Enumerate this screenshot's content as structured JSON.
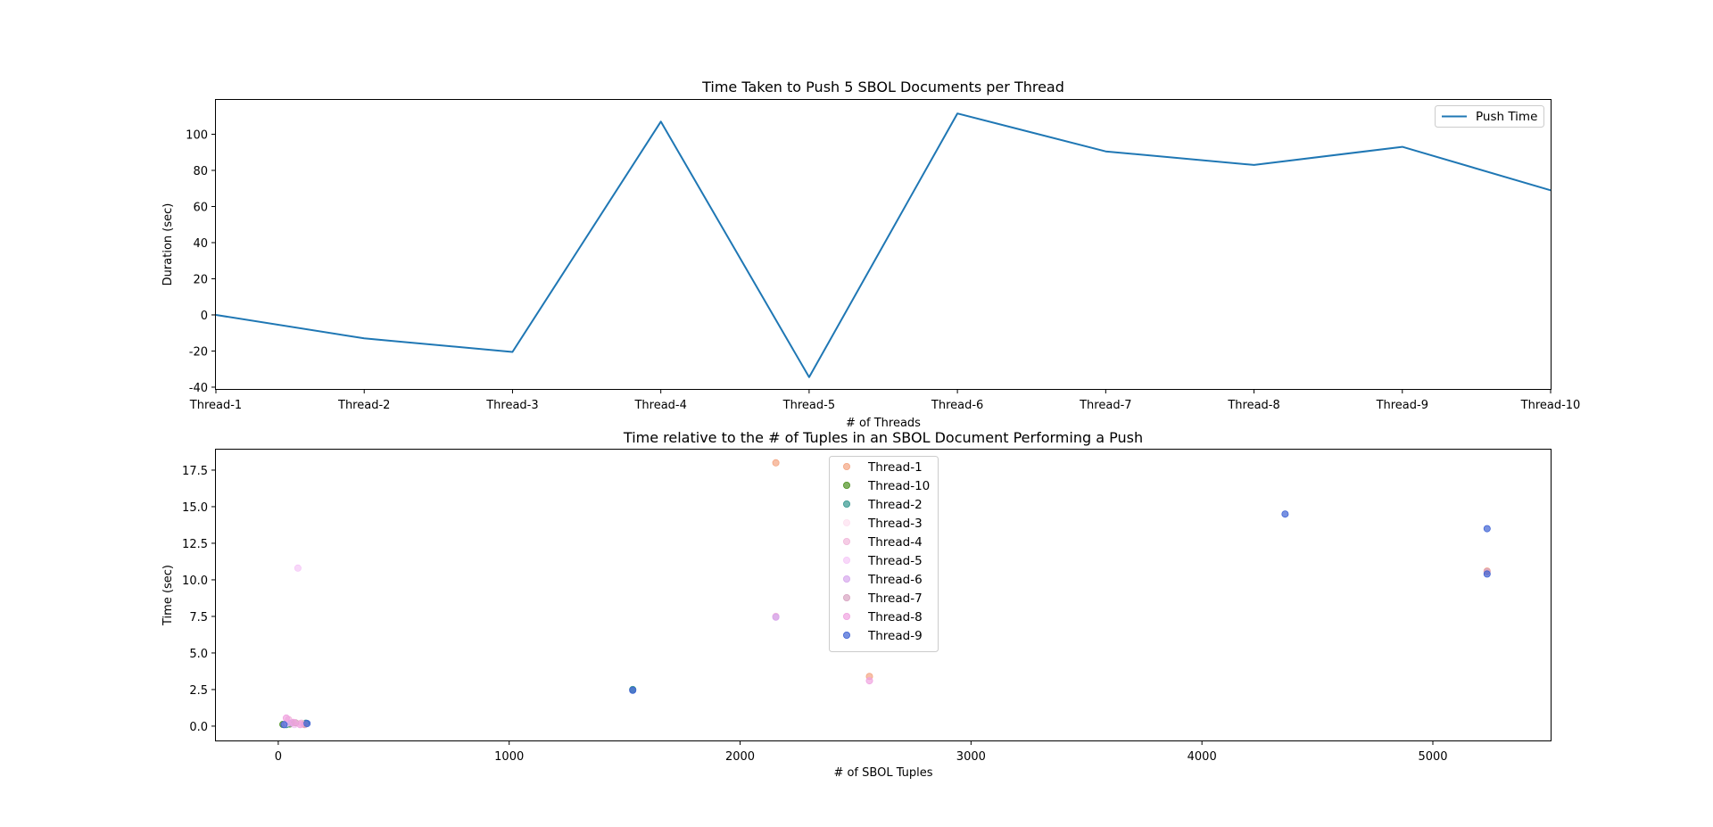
{
  "colors": {
    "line": "#1f77b4",
    "Thread-1": "#f4a582",
    "Thread-10": "#4d9221",
    "Thread-2": "#35978f",
    "Thread-3": "#fde0ef",
    "Thread-4": "#f1b6da",
    "Thread-5": "#f5c8f7",
    "Thread-6": "#d6a6ec",
    "Thread-7": "#d7a3c0",
    "Thread-8": "#f0a2e0",
    "Thread-9": "#3f63d4"
  },
  "chart_data": [
    {
      "type": "line",
      "title": "Time Taken to Push 5 SBOL Documents per Thread",
      "xlabel": "# of Threads",
      "ylabel": "Duration (sec)",
      "categories": [
        "Thread-1",
        "Thread-2",
        "Thread-3",
        "Thread-4",
        "Thread-5",
        "Thread-6",
        "Thread-7",
        "Thread-8",
        "Thread-9",
        "Thread-10"
      ],
      "series": [
        {
          "name": "Push Time",
          "values": [
            0,
            -13,
            -20.5,
            107,
            -34.5,
            111.5,
            90.5,
            83,
            93,
            69
          ]
        }
      ],
      "ylim": [
        -41,
        119
      ],
      "yticks": [
        -40,
        -20,
        0,
        20,
        40,
        60,
        80,
        100
      ],
      "legend": "top-right",
      "grid": false
    },
    {
      "type": "scatter",
      "title": "Time relative to the # of Tuples in an SBOL Document Performing a Push",
      "xlabel": "# of SBOL Tuples",
      "ylabel": "Time (sec)",
      "xlim": [
        -270,
        5510
      ],
      "ylim": [
        -0.98,
        18.9
      ],
      "xticks": [
        0,
        1000,
        2000,
        3000,
        4000,
        5000
      ],
      "yticks": [
        0.0,
        2.5,
        5.0,
        7.5,
        10.0,
        12.5,
        15.0,
        17.5
      ],
      "ytick_labels": [
        "0.0",
        "2.5",
        "5.0",
        "7.5",
        "10.0",
        "12.5",
        "15.0",
        "17.5"
      ],
      "legend": "upper center",
      "grid": false,
      "series": [
        {
          "name": "Thread-1",
          "points": [
            [
              2155,
              18.0
            ],
            [
              5235,
              10.6
            ],
            [
              2560,
              3.4
            ],
            [
              25,
              0.1
            ],
            [
              60,
              0.2
            ],
            [
              110,
              0.15
            ]
          ]
        },
        {
          "name": "Thread-10",
          "points": [
            [
              20,
              0.12
            ],
            [
              50,
              0.15
            ]
          ]
        },
        {
          "name": "Thread-2",
          "points": [
            [
              1535,
              2.5
            ],
            [
              120,
              0.2
            ],
            [
              35,
              0.1
            ]
          ]
        },
        {
          "name": "Thread-3",
          "points": [
            [
              40,
              0.2
            ],
            [
              90,
              0.18
            ]
          ]
        },
        {
          "name": "Thread-4",
          "points": [
            [
              2155,
              7.5
            ],
            [
              45,
              0.45
            ],
            [
              100,
              0.2
            ]
          ]
        },
        {
          "name": "Thread-5",
          "points": [
            [
              85,
              10.8
            ],
            [
              30,
              0.15
            ],
            [
              70,
              0.1
            ]
          ]
        },
        {
          "name": "Thread-6",
          "points": [
            [
              2155,
              7.45
            ],
            [
              55,
              0.2
            ]
          ]
        },
        {
          "name": "Thread-7",
          "points": [
            [
              5235,
              10.55
            ],
            [
              75,
              0.22
            ],
            [
              115,
              0.1
            ]
          ]
        },
        {
          "name": "Thread-8",
          "points": [
            [
              2560,
              3.1
            ],
            [
              35,
              0.55
            ],
            [
              65,
              0.25
            ],
            [
              95,
              0.1
            ]
          ]
        },
        {
          "name": "Thread-9",
          "points": [
            [
              4360,
              14.5
            ],
            [
              5235,
              13.5
            ],
            [
              5235,
              10.4
            ],
            [
              1535,
              2.45
            ],
            [
              25,
              0.1
            ],
            [
              125,
              0.18
            ]
          ]
        }
      ]
    }
  ]
}
